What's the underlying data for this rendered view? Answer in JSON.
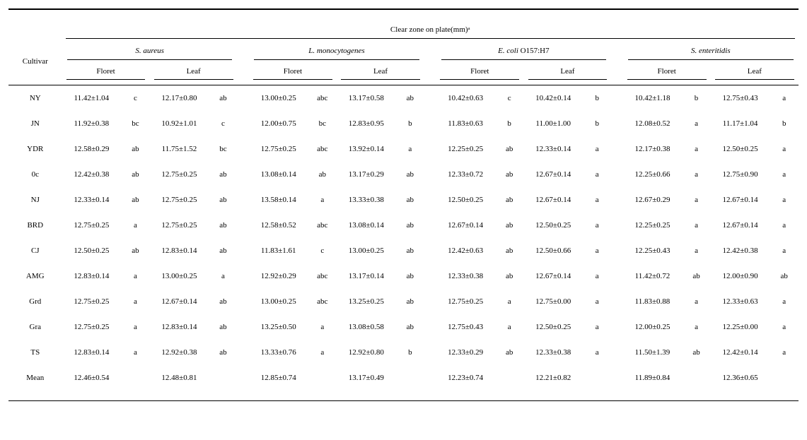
{
  "table": {
    "title": "Clear zone on plate(mm)ᵃ",
    "cultivar_label": "Cultivar",
    "groups": [
      {
        "name_italic": "S. aureus",
        "sub": [
          "Floret",
          "Leaf"
        ]
      },
      {
        "name_italic": "L. monocytogenes",
        "sub": [
          "Floret",
          "Leaf"
        ]
      },
      {
        "name_html": {
          "italic_prefix": "E. coli",
          "plain_suffix": " O157:H7"
        },
        "sub": [
          "Floret",
          "Leaf"
        ]
      },
      {
        "name_italic": "S. enteritidis",
        "sub": [
          "Floret",
          "Leaf"
        ]
      }
    ],
    "rows": [
      {
        "cultivar": "NY",
        "cells": [
          [
            "11.42±1.04",
            "c"
          ],
          [
            "12.17±0.80",
            "ab"
          ],
          [
            "13.00±0.25",
            "abc"
          ],
          [
            "13.17±0.58",
            "ab"
          ],
          [
            "10.42±0.63",
            "c"
          ],
          [
            "10.42±0.14",
            "b"
          ],
          [
            "10.42±1.18",
            "b"
          ],
          [
            "12.75±0.43",
            "a"
          ]
        ]
      },
      {
        "cultivar": "JN",
        "cells": [
          [
            "11.92±0.38",
            "bc"
          ],
          [
            "10.92±1.01",
            "c"
          ],
          [
            "12.00±0.75",
            "bc"
          ],
          [
            "12.83±0.95",
            "b"
          ],
          [
            "11.83±0.63",
            "b"
          ],
          [
            "11.00±1.00",
            "b"
          ],
          [
            "12.08±0.52",
            "a"
          ],
          [
            "11.17±1.04",
            "b"
          ]
        ]
      },
      {
        "cultivar": "YDR",
        "cells": [
          [
            "12.58±0.29",
            "ab"
          ],
          [
            "11.75±1.52",
            "bc"
          ],
          [
            "12.75±0.25",
            "abc"
          ],
          [
            "13.92±0.14",
            "a"
          ],
          [
            "12.25±0.25",
            "ab"
          ],
          [
            "12.33±0.14",
            "a"
          ],
          [
            "12.17±0.38",
            "a"
          ],
          [
            "12.50±0.25",
            "a"
          ]
        ]
      },
      {
        "cultivar": "0c",
        "cells": [
          [
            "12.42±0.38",
            "ab"
          ],
          [
            "12.75±0.25",
            "ab"
          ],
          [
            "13.08±0.14",
            "ab"
          ],
          [
            "13.17±0.29",
            "ab"
          ],
          [
            "12.33±0.72",
            "ab"
          ],
          [
            "12.67±0.14",
            "a"
          ],
          [
            "12.25±0.66",
            "a"
          ],
          [
            "12.75±0.90",
            "a"
          ]
        ]
      },
      {
        "cultivar": "NJ",
        "cells": [
          [
            "12.33±0.14",
            "ab"
          ],
          [
            "12.75±0.25",
            "ab"
          ],
          [
            "13.58±0.14",
            "a"
          ],
          [
            "13.33±0.38",
            "ab"
          ],
          [
            "12.50±0.25",
            "ab"
          ],
          [
            "12.67±0.14",
            "a"
          ],
          [
            "12.67±0.29",
            "a"
          ],
          [
            "12.67±0.14",
            "a"
          ]
        ]
      },
      {
        "cultivar": "BRD",
        "cells": [
          [
            "12.75±0.25",
            "a"
          ],
          [
            "12.75±0.25",
            "ab"
          ],
          [
            "12.58±0.52",
            "abc"
          ],
          [
            "13.08±0.14",
            "ab"
          ],
          [
            "12.67±0.14",
            "ab"
          ],
          [
            "12.50±0.25",
            "a"
          ],
          [
            "12.25±0.25",
            "a"
          ],
          [
            "12.67±0.14",
            "a"
          ]
        ]
      },
      {
        "cultivar": "CJ",
        "cells": [
          [
            "12.50±0.25",
            "ab"
          ],
          [
            "12.83±0.14",
            "ab"
          ],
          [
            "11.83±1.61",
            "c"
          ],
          [
            "13.00±0.25",
            "ab"
          ],
          [
            "12.42±0.63",
            "ab"
          ],
          [
            "12.50±0.66",
            "a"
          ],
          [
            "12.25±0.43",
            "a"
          ],
          [
            "12.42±0.38",
            "a"
          ]
        ]
      },
      {
        "cultivar": "AMG",
        "cells": [
          [
            "12.83±0.14",
            "a"
          ],
          [
            "13.00±0.25",
            "a"
          ],
          [
            "12.92±0.29",
            "abc"
          ],
          [
            "13.17±0.14",
            "ab"
          ],
          [
            "12.33±0.38",
            "ab"
          ],
          [
            "12.67±0.14",
            "a"
          ],
          [
            "11.42±0.72",
            "ab"
          ],
          [
            "12.00±0.90",
            "ab"
          ]
        ]
      },
      {
        "cultivar": "Grd",
        "cells": [
          [
            "12.75±0.25",
            "a"
          ],
          [
            "12.67±0.14",
            "ab"
          ],
          [
            "13.00±0.25",
            "abc"
          ],
          [
            "13.25±0.25",
            "ab"
          ],
          [
            "12.75±0.25",
            "a"
          ],
          [
            "12.75±0.00",
            "a"
          ],
          [
            "11.83±0.88",
            "a"
          ],
          [
            "12.33±0.63",
            "a"
          ]
        ]
      },
      {
        "cultivar": "Gra",
        "cells": [
          [
            "12.75±0.25",
            "a"
          ],
          [
            "12.83±0.14",
            "ab"
          ],
          [
            "13.25±0.50",
            "a"
          ],
          [
            "13.08±0.58",
            "ab"
          ],
          [
            "12.75±0.43",
            "a"
          ],
          [
            "12.50±0.25",
            "a"
          ],
          [
            "12.00±0.25",
            "a"
          ],
          [
            "12.25±0.00",
            "a"
          ]
        ]
      },
      {
        "cultivar": "TS",
        "cells": [
          [
            "12.83±0.14",
            "a"
          ],
          [
            "12.92±0.38",
            "ab"
          ],
          [
            "13.33±0.76",
            "a"
          ],
          [
            "12.92±0.80",
            "b"
          ],
          [
            "12.33±0.29",
            "ab"
          ],
          [
            "12.33±0.38",
            "a"
          ],
          [
            "11.50±1.39",
            "ab"
          ],
          [
            "12.42±0.14",
            "a"
          ]
        ]
      }
    ],
    "mean_row": {
      "label": "Mean",
      "cells": [
        [
          "12.46±0.54",
          ""
        ],
        [
          "12.48±0.81",
          ""
        ],
        [
          "12.85±0.74",
          ""
        ],
        [
          "13.17±0.49",
          ""
        ],
        [
          "12.23±0.74",
          ""
        ],
        [
          "12.21±0.82",
          ""
        ],
        [
          "11.89±0.84",
          ""
        ],
        [
          "12.36±0.65",
          ""
        ]
      ]
    }
  },
  "style": {
    "font_family": "Times New Roman",
    "font_size_pt": 11,
    "background_color": "#ffffff",
    "text_color": "#000000",
    "border_color": "#000000"
  }
}
